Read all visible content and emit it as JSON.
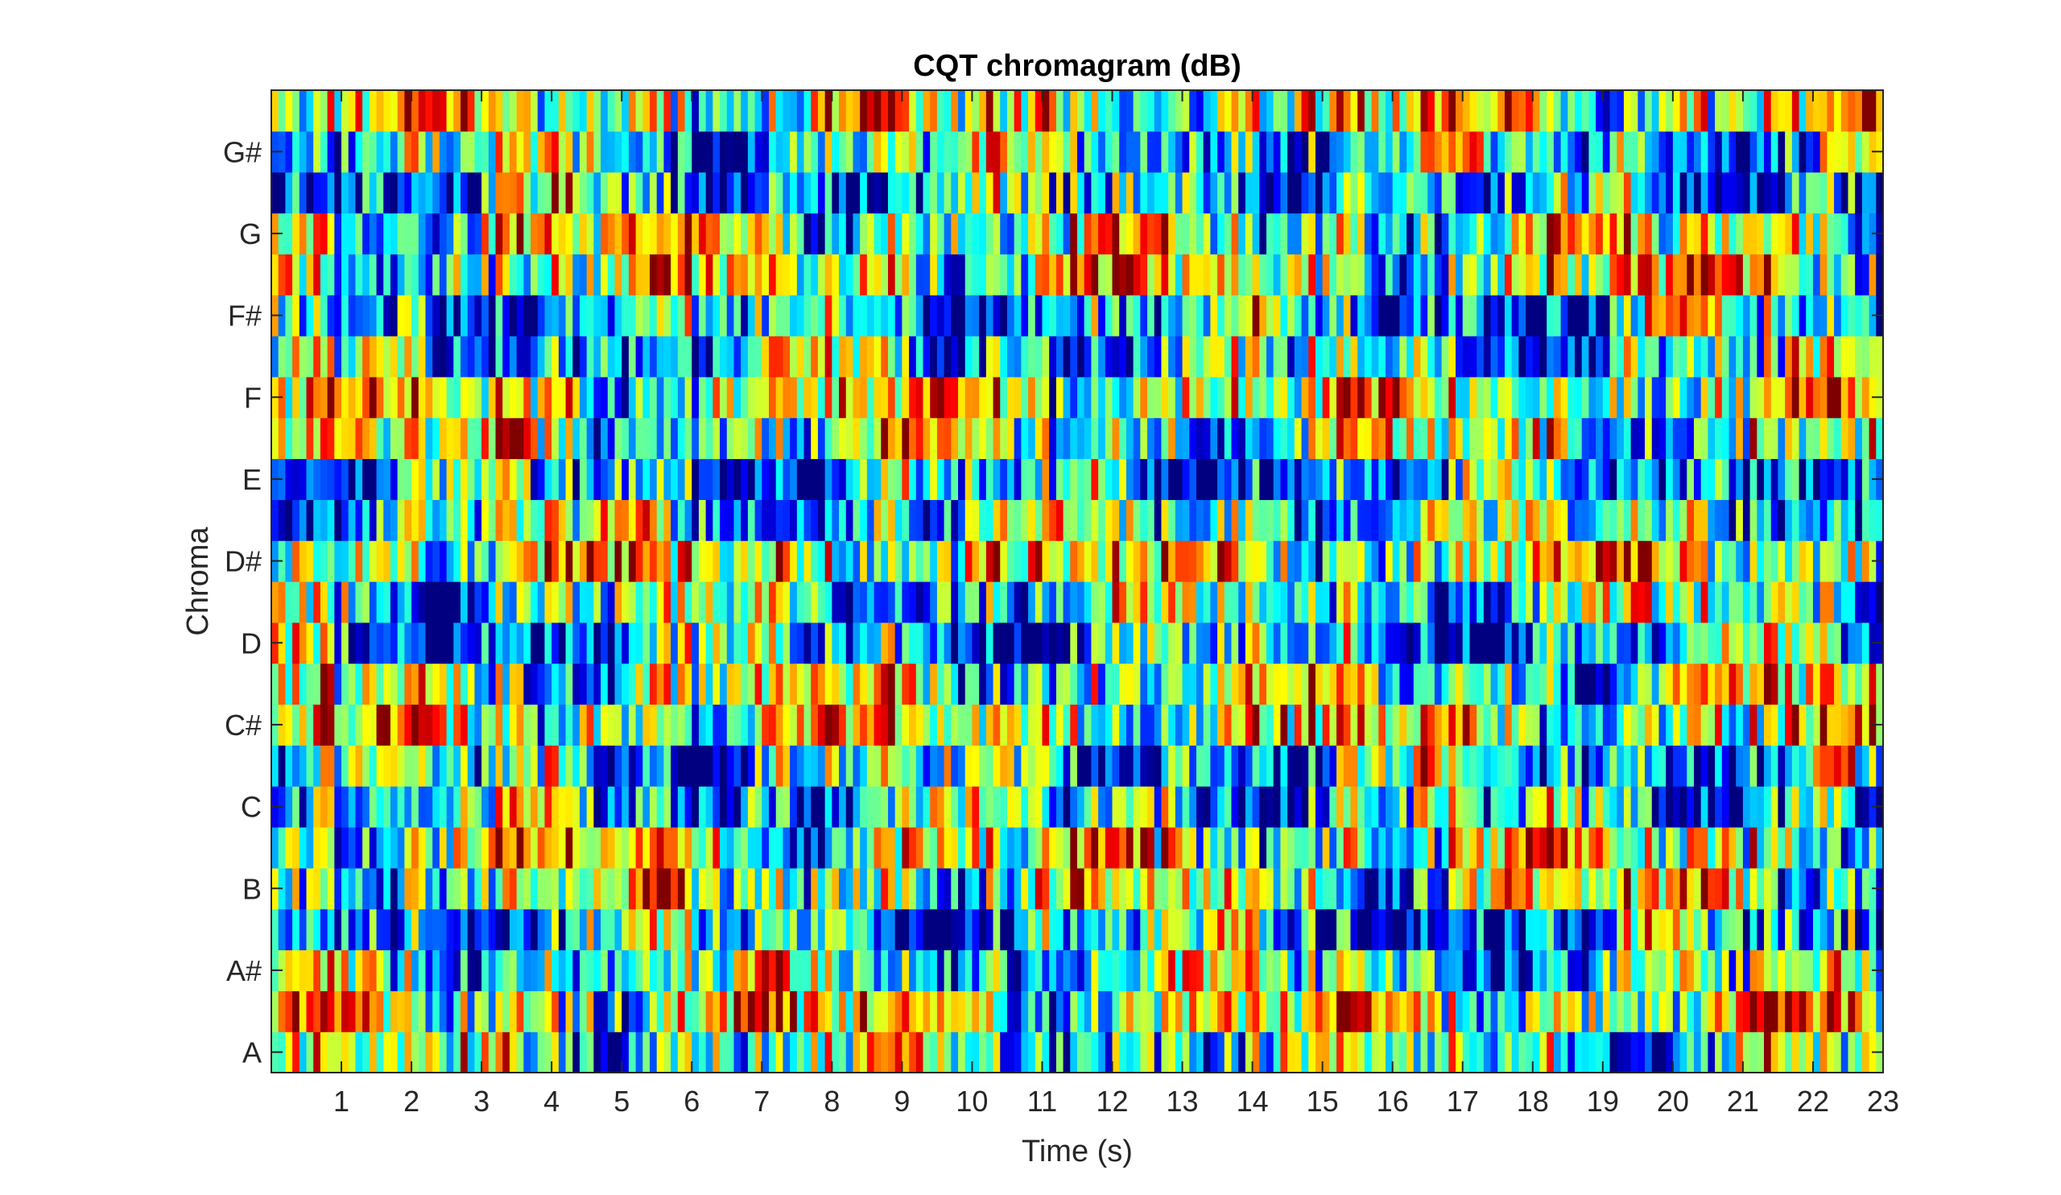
{
  "chart_data": {
    "type": "heatmap",
    "title": "CQT chromagram (dB)",
    "xlabel": "Time (s)",
    "ylabel": "Chroma",
    "xlim": [
      0,
      23
    ],
    "x_ticks": [
      "1",
      "2",
      "3",
      "4",
      "5",
      "6",
      "7",
      "8",
      "9",
      "10",
      "11",
      "12",
      "13",
      "14",
      "15",
      "16",
      "17",
      "18",
      "19",
      "20",
      "21",
      "22",
      "23"
    ],
    "y_ticks": [
      "A",
      "A#",
      "B",
      "C",
      "C#",
      "D",
      "D#",
      "E",
      "F",
      "F#",
      "G",
      "G#"
    ],
    "pitch_classes": [
      "A",
      "A#",
      "B",
      "C",
      "C#",
      "D",
      "D#",
      "E",
      "F",
      "F#",
      "G",
      "G#"
    ],
    "colormap": "jet",
    "color_scale": "low (blue) to high (red) dB",
    "frames": 230,
    "frame_duration_s": 0.1,
    "rows_total": 24,
    "grid": false,
    "legend": "none"
  }
}
